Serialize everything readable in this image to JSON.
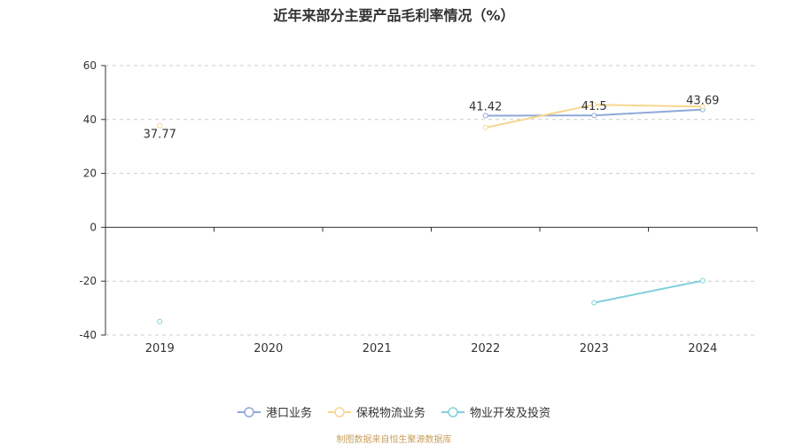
{
  "chart_data": {
    "type": "line",
    "title": "近年来部分主要产品毛利率情况（%）",
    "categories": [
      "2019",
      "2020",
      "2021",
      "2022",
      "2023",
      "2024"
    ],
    "ylim": [
      -40,
      60
    ],
    "yticks": [
      60,
      40,
      20,
      0,
      -20,
      -40
    ],
    "grid": true,
    "legend_position": "bottom",
    "series": [
      {
        "name": "港口业务",
        "color": "#8fa9d9",
        "values": [
          null,
          null,
          null,
          41.42,
          41.5,
          43.69
        ],
        "labels": [
          null,
          null,
          null,
          "41.42",
          "41.5",
          "43.69"
        ]
      },
      {
        "name": "保税物流业务",
        "color": "#f8d58e",
        "values": [
          37.77,
          null,
          null,
          37.0,
          45.5,
          44.8
        ],
        "labels": [
          "37.77",
          null,
          null,
          null,
          null,
          null
        ]
      },
      {
        "name": "物业开发及投资",
        "color": "#7fd0dc",
        "values": [
          -35.0,
          null,
          null,
          null,
          -28.0,
          -19.8
        ],
        "labels": [
          null,
          null,
          null,
          null,
          null,
          null
        ]
      }
    ]
  },
  "source_note": "制图数据来自恒生聚源数据库"
}
